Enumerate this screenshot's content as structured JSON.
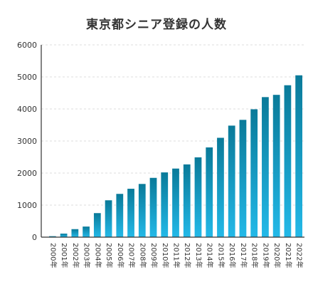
{
  "chart_data": {
    "type": "bar",
    "title": "東京都シニア登録の人数",
    "xlabel": "",
    "ylabel": "",
    "ylim": [
      0,
      6000
    ],
    "yticks": [
      0,
      1000,
      2000,
      3000,
      4000,
      5000,
      6000
    ],
    "grid": true,
    "categories": [
      "2000年",
      "2001年",
      "2002年",
      "2003年",
      "2004年",
      "2005年",
      "2006年",
      "2007年",
      "2008年",
      "2009年",
      "2010年",
      "2011年",
      "2012年",
      "2013年",
      "2014年",
      "2015年",
      "2016年",
      "2017年",
      "2018年",
      "2019年",
      "2020年",
      "2021年",
      "2022年"
    ],
    "values": [
      30,
      110,
      250,
      330,
      750,
      1150,
      1350,
      1510,
      1660,
      1850,
      2020,
      2140,
      2270,
      2490,
      2800,
      3100,
      3480,
      3660,
      3990,
      4370,
      4440,
      4740,
      5050
    ],
    "colors": {
      "bar_top": "#0a7a99",
      "bar_bottom": "#23b9e8",
      "grid": "#dddddd",
      "axis": "#333333"
    }
  }
}
